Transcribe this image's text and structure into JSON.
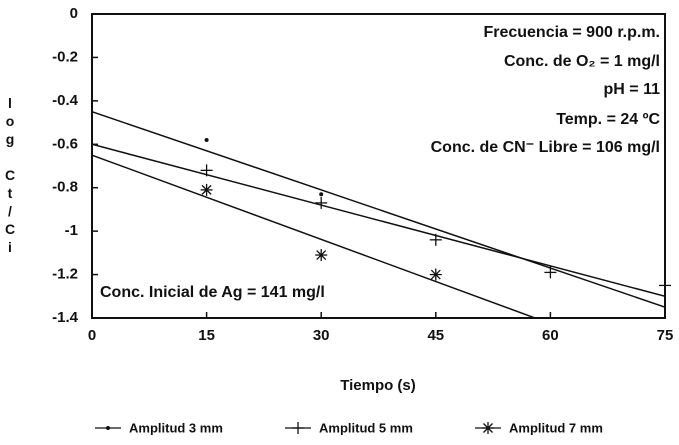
{
  "chart_data": {
    "type": "scatter",
    "x_label": "Tiempo (s)",
    "y_label": "log Ct/Ci",
    "xlim": [
      0,
      75
    ],
    "xticks": [
      0,
      15,
      30,
      45,
      60,
      75
    ],
    "ylim": [
      -1.4,
      0
    ],
    "yticks": [
      0,
      -0.2,
      -0.4,
      -0.6,
      -0.8,
      -1,
      -1.2,
      -1.4
    ],
    "annotations": [
      "Frecuencia = 900 r.p.m.",
      "Conc. de O₂ = 1 mg/l",
      "pH = 11",
      "Temp. = 24 ºC",
      "Conc. de CN⁻ Libre = 106 mg/l",
      "Conc. Inicial de Ag = 141 mg/l"
    ],
    "series": [
      {
        "name": "Amplitud 3 mm",
        "color": "#111111",
        "marker": "dot",
        "x": [
          15,
          30
        ],
        "values": [
          -0.58,
          -0.83
        ],
        "fit": [
          -0.45,
          -1.35
        ]
      },
      {
        "name": "Amplitud 5 mm",
        "color": "#111111",
        "marker": "plus",
        "x": [
          15,
          30,
          45,
          60,
          75
        ],
        "values": [
          -0.72,
          -0.87,
          -1.04,
          -1.19,
          -1.25
        ],
        "fit": [
          -0.6,
          -1.3
        ]
      },
      {
        "name": "Amplitud 7 mm",
        "color": "#111111",
        "marker": "star",
        "x": [
          15,
          30,
          45
        ],
        "values": [
          -0.81,
          -1.11,
          -1.2
        ],
        "fit": [
          -0.65,
          -1.62
        ]
      }
    ]
  }
}
